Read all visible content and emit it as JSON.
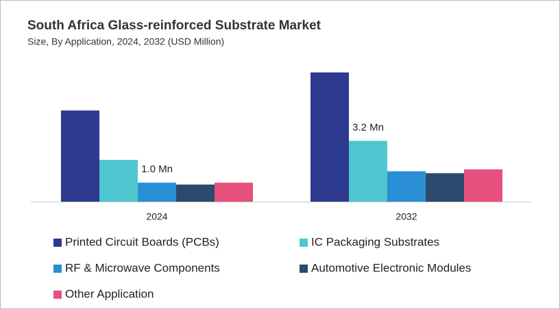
{
  "chart_data": {
    "type": "bar",
    "title": "South Africa Glass-reinforced Substrate Market",
    "subtitle": "Size, By Application, 2024, 2032 (USD Million)",
    "categories": [
      "2024",
      "2032"
    ],
    "series": [
      {
        "name": "Printed Circuit Boards (PCBs)",
        "color": "#2e3a8f",
        "values": [
          4.8,
          6.8
        ]
      },
      {
        "name": "IC Packaging Substrates",
        "color": "#4fc7d0",
        "values": [
          2.2,
          3.2
        ],
        "value_labels": [
          null,
          "3.2 Mn"
        ]
      },
      {
        "name": "RF & Microwave Components",
        "color": "#2a8fd4",
        "values": [
          1.0,
          1.6
        ],
        "value_labels": [
          "1.0 Mn",
          null
        ]
      },
      {
        "name": "Automotive Electronic Modules",
        "color": "#2b4a6e",
        "values": [
          0.9,
          1.5
        ]
      },
      {
        "name": "Other Application",
        "color": "#e8507e",
        "values": [
          1.0,
          1.7
        ]
      }
    ]
  }
}
